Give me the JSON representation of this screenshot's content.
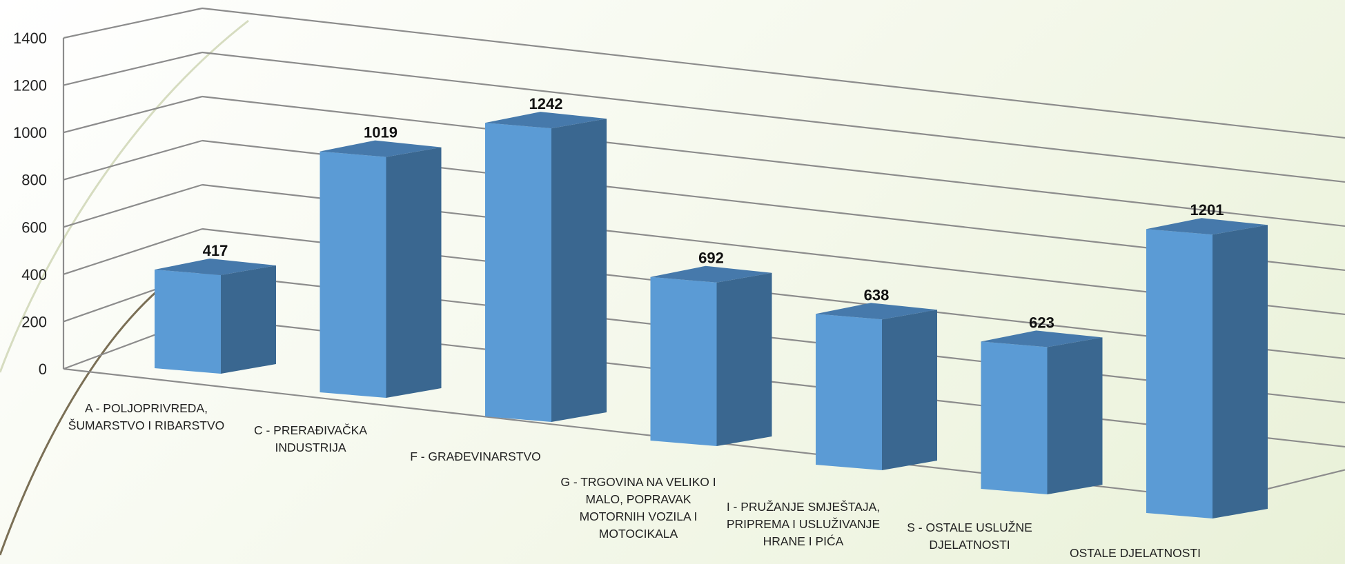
{
  "chart_data": {
    "type": "bar",
    "categories": [
      "A - POLJOPRIVREDA, ŠUMARSTVO I RIBARSTVO",
      "C - PRERAĐIVAČKA INDUSTRIJA",
      "F - GRAĐEVINARSTVO",
      "G - TRGOVINA NA VELIKO I MALO, POPRAVAK MOTORNIH VOZILA I MOTOCIKALA",
      "I - PRUŽANJE SMJEŠTAJA, PRIPREMA I USLUŽIVANJE HRANE I PIĆA",
      "S - OSTALE USLUŽNE DJELATNOSTI",
      "OSTALE DJELATNOSTI"
    ],
    "values": [
      417,
      1019,
      1242,
      692,
      638,
      623,
      1201
    ],
    "data_labels": [
      "417",
      "1019",
      "1242",
      "692",
      "638",
      "623",
      "1201"
    ],
    "ylim": [
      0,
      1400
    ],
    "yticks": [
      "0",
      "200",
      "400",
      "600",
      "800",
      "1000",
      "1200",
      "1400"
    ],
    "grid": true,
    "style": "3d-column",
    "colors": {
      "front": "#5b9bd5",
      "side": "#3a6790",
      "top": "#4679ab",
      "grid": "#8c8c8c"
    }
  }
}
